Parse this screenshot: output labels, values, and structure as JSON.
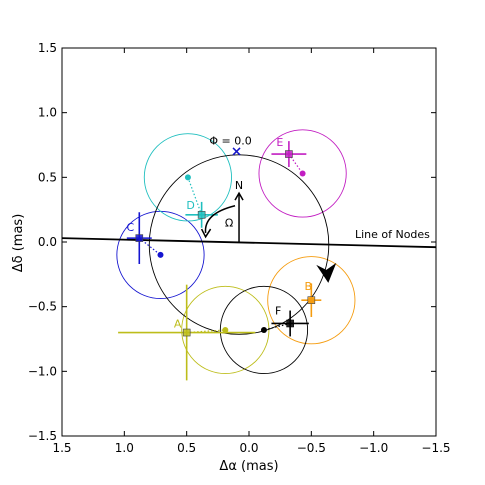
{
  "chart_data": {
    "type": "scatter",
    "title": "",
    "xlabel": "Δα (mas)",
    "ylabel": "Δδ (mas)",
    "xlim": [
      1.5,
      -1.5
    ],
    "ylim": [
      -1.5,
      1.5
    ],
    "xticks": [
      1.5,
      1.0,
      0.5,
      0.0,
      -0.5,
      -1.0,
      -1.5
    ],
    "yticks": [
      1.5,
      1.0,
      0.5,
      0.0,
      -0.5,
      -1.0,
      -1.5
    ],
    "xtick_labels": [
      "1.5",
      "1.0",
      "0.5",
      "0.0",
      "−0.5",
      "−1.0",
      "−1.5"
    ],
    "ytick_labels": [
      "1.5",
      "1.0",
      "0.5",
      "0.0",
      "−0.5",
      "−1.0",
      "−1.5"
    ],
    "grid": false,
    "orbit": {
      "center": [
        0.08,
        -0.02
      ],
      "radius": 0.72,
      "color": "#000000"
    },
    "line_of_nodes": {
      "points": [
        [
          1.5,
          0.03
        ],
        [
          -1.5,
          -0.04
        ]
      ],
      "label": "Line of Nodes"
    },
    "phase_marker": {
      "x": 0.1,
      "y": 0.7,
      "label": "Φ = 0.0",
      "color": "#1515c8"
    },
    "north_arrow": {
      "x": 0.08,
      "y0": 0.0,
      "y1": 0.37,
      "label": "N"
    },
    "omega_label": "Ω",
    "points": [
      {
        "label": "A",
        "color": "#bdbd1a",
        "obs_x": 0.5,
        "obs_y": -0.7,
        "xerr": 0.55,
        "yerr": 0.37,
        "model_x": 0.19,
        "model_y": -0.68,
        "circle_r": 0.35
      },
      {
        "label": "B",
        "color": "#f59c0f",
        "obs_x": -0.5,
        "obs_y": -0.45,
        "xerr": 0.08,
        "yerr": 0.13,
        "model_x": -0.5,
        "model_y": -0.45,
        "circle_r": 0.35
      },
      {
        "label": "C",
        "color": "#1515d0",
        "obs_x": 0.88,
        "obs_y": 0.03,
        "xerr": 0.1,
        "yerr": 0.2,
        "model_x": 0.71,
        "model_y": -0.1,
        "circle_r": 0.35
      },
      {
        "label": "D",
        "color": "#1fbfbf",
        "obs_x": 0.38,
        "obs_y": 0.21,
        "xerr": 0.13,
        "yerr": 0.1,
        "model_x": 0.49,
        "model_y": 0.5,
        "circle_r": 0.35
      },
      {
        "label": "E",
        "color": "#c21fc2",
        "obs_x": -0.32,
        "obs_y": 0.68,
        "xerr": 0.14,
        "yerr": 0.1,
        "model_x": -0.43,
        "model_y": 0.53,
        "circle_r": 0.35
      },
      {
        "label": "F",
        "color": "#000000",
        "obs_x": -0.33,
        "obs_y": -0.63,
        "xerr": 0.15,
        "yerr": 0.1,
        "model_x": -0.12,
        "model_y": -0.68,
        "circle_r": 0.35
      }
    ]
  }
}
